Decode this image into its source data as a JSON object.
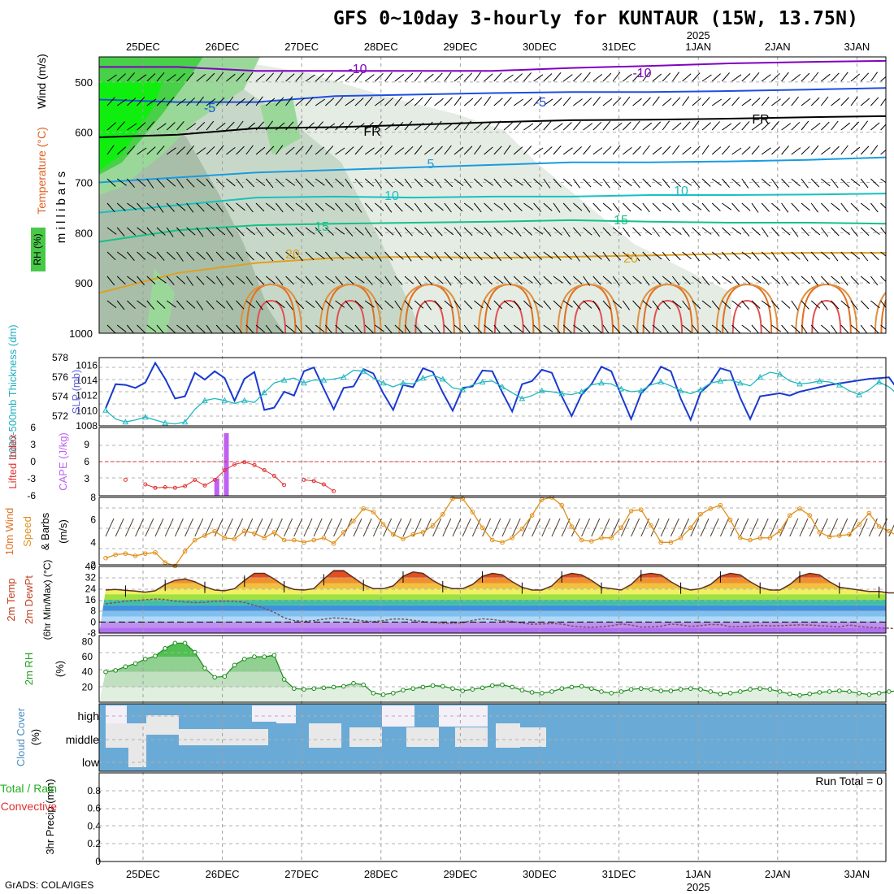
{
  "title": "GFS 0~10day 3-hourly for KUNTAUR (15W, 13.75N)",
  "credit": "GrADS: COLA/IGES",
  "year_label": "2025",
  "dates": [
    "25DEC",
    "26DEC",
    "27DEC",
    "28DEC",
    "29DEC",
    "30DEC",
    "31DEC",
    "1JAN",
    "2JAN",
    "3JAN"
  ],
  "chart_data": [
    {
      "type": "heatmap",
      "panel": "upper-air",
      "ylabel": "Wind (m/s)",
      "ylabel2": "Temperature (°C)",
      "ylabel3": "m i l l i b a r s",
      "rh_label": "RH (%)",
      "y_ticks": [
        500,
        600,
        700,
        800,
        900,
        1000
      ],
      "ylim": [
        1000,
        450
      ],
      "xlim": [
        0,
        10
      ],
      "isotherms": [
        {
          "label": "-10",
          "color": "#8000c0",
          "values": [
            470,
            470,
            478,
            478,
            478,
            478,
            472,
            468,
            463,
            460,
            458
          ]
        },
        {
          "label": "-5",
          "color": "#1f4ee0",
          "values": [
            535,
            540,
            540,
            528,
            525,
            522,
            520,
            520,
            518,
            515,
            512
          ]
        },
        {
          "label": "FR",
          "color": "#000000",
          "values": [
            610,
            605,
            592,
            590,
            585,
            580,
            576,
            575,
            573,
            570,
            568
          ]
        },
        {
          "label": "5",
          "color": "#1a9be0",
          "values": [
            700,
            690,
            680,
            675,
            670,
            665,
            660,
            660,
            658,
            655,
            650
          ]
        },
        {
          "label": "10",
          "color": "#19c0c0",
          "values": [
            760,
            745,
            730,
            728,
            730,
            728,
            728,
            725,
            725,
            724,
            722
          ]
        },
        {
          "label": "15",
          "color": "#16c08a",
          "values": [
            818,
            795,
            785,
            782,
            780,
            778,
            775,
            778,
            780,
            780,
            782
          ]
        },
        {
          "label": "20",
          "color": "#e0a020",
          "values": [
            920,
            880,
            860,
            850,
            848,
            850,
            848,
            845,
            842,
            840,
            840
          ]
        }
      ]
    },
    {
      "type": "line",
      "panel": "slp-thickness",
      "ylabel": "1000-500mb Thickness (dm)",
      "ylabel2": "SLP (mb)",
      "y_ticks_left": [
        572,
        574,
        576,
        578
      ],
      "y_ticks_right": [
        1008,
        1010,
        1012,
        1014,
        1016
      ],
      "ylim_left": [
        571,
        578
      ],
      "ylim_right": [
        1008,
        1017
      ],
      "series": [
        {
          "name": "SLP",
          "color": "#1a3ad0",
          "axis": "right",
          "values": [
            1010.3,
            1013.5,
            1013.4,
            1013.0,
            1013.7,
            1016.3,
            1014.2,
            1011.6,
            1011.9,
            1015.0,
            1014.1,
            1015.2,
            1014.3,
            1011.3,
            1014.2,
            1015.1,
            1010.1,
            1010.4,
            1012.5,
            1012.0,
            1015.2,
            1015.7,
            1012.9,
            1010.2,
            1013.0,
            1013.2,
            1015.5,
            1014.9,
            1012.3,
            1010.1,
            1013.4,
            1013.1,
            1015.6,
            1015.1,
            1012.4,
            1010.0,
            1013.0,
            1013.2,
            1015.3,
            1015.2,
            1012.4,
            1009.9,
            1013.5,
            1013.9,
            1015.4,
            1015.0,
            1011.9,
            1009.3,
            1012.1,
            1013.5,
            1015.8,
            1015.2,
            1012.0,
            1008.9,
            1012.3,
            1013.6,
            1015.8,
            1015.2,
            1011.6,
            1008.8,
            1012.4,
            1013.6,
            1015.6,
            1015.2,
            1011.7,
            1008.9,
            1011.9,
            1012.1,
            1012.3,
            1012.0,
            1012.5,
            1012.8,
            1013.1,
            1013.4,
            1013.6,
            1013.8,
            1014.0,
            1014.2,
            1014.3,
            1014.4,
            1012.6
          ]
        },
        {
          "name": "Thickness",
          "color": "#20b8c0",
          "axis": "left",
          "values": [
            572.6,
            571.7,
            571.4,
            571.6,
            571.9,
            571.6,
            571.3,
            571.2,
            571.4,
            572.7,
            573.6,
            573.8,
            573.6,
            573.3,
            573.6,
            573.4,
            574.4,
            575.4,
            575.7,
            575.9,
            575.4,
            575.7,
            575.7,
            575.8,
            576.0,
            576.7,
            576.6,
            575.9,
            575.4,
            575.0,
            575.4,
            575.3,
            575.9,
            576.2,
            575.8,
            574.9,
            574.7,
            575.2,
            575.5,
            575.6,
            575.0,
            574.4,
            573.8,
            574.1,
            574.6,
            574.5,
            574.3,
            574.2,
            574.5,
            575.2,
            575.4,
            575.3,
            574.8,
            574.5,
            574.6,
            575.2,
            575.5,
            575.1,
            574.6,
            574.3,
            574.7,
            575.4,
            575.6,
            575.7,
            575.4,
            575.1,
            576.0,
            576.5,
            576.3,
            575.6,
            575.3,
            575.4,
            575.6,
            575.5,
            575.2,
            574.6,
            574.2,
            574.7,
            575.5,
            575.0,
            574.1
          ]
        }
      ]
    },
    {
      "type": "bar",
      "panel": "cape-li",
      "ylabel": "Lifted Index",
      "ylabel2": "CAPE (J/kg)",
      "y_ticks_left": [
        "6",
        "3",
        "0",
        "-3",
        "-6"
      ],
      "y_ticks_right": [
        3,
        6,
        9
      ],
      "ylim_li": [
        6,
        -6
      ],
      "ylim_cape": [
        0,
        12
      ],
      "cape_bars": [
        {
          "x": 0.93,
          "value": 3
        },
        {
          "x": 1.05,
          "value": 11
        }
      ],
      "lifted_index": [
        null,
        null,
        3.2,
        null,
        4.0,
        4.6,
        4.5,
        4.6,
        4.3,
        3.2,
        4.2,
        3.2,
        1.5,
        0.5,
        0.1,
        0.6,
        1.5,
        2.5,
        4.1,
        null,
        3.2,
        3.4,
        4.0,
        5.2
      ]
    },
    {
      "type": "line",
      "panel": "wind10m",
      "ylabel": "10m Wind Speed & Barbs (m/s)",
      "y_ticks": [
        2,
        4,
        6,
        8
      ],
      "ylim": [
        2,
        8
      ],
      "series": [
        {
          "name": "Speed",
          "color": "#e0901a",
          "values": [
            2.6,
            2.9,
            3.0,
            2.8,
            3.0,
            3.1,
            2.2,
            1.9,
            3.2,
            4.2,
            4.6,
            5.0,
            4.4,
            4.3,
            5.0,
            4.8,
            4.4,
            4.9,
            4.2,
            4.2,
            4.0,
            4.2,
            4.4,
            3.9,
            4.9,
            5.9,
            7.0,
            6.7,
            5.6,
            4.7,
            4.3,
            4.7,
            4.9,
            5.5,
            6.5,
            7.9,
            7.9,
            6.7,
            5.3,
            4.2,
            4.0,
            4.4,
            5.2,
            6.4,
            7.8,
            8.0,
            7.3,
            5.4,
            4.2,
            4.1,
            4.4,
            4.4,
            5.3,
            6.8,
            6.9,
            5.5,
            4.0,
            4.0,
            4.4,
            5.3,
            6.5,
            7.0,
            7.3,
            6.0,
            4.4,
            4.2,
            4.4,
            4.4,
            5.0,
            6.4,
            7.0,
            6.4,
            4.9,
            4.5,
            4.6,
            4.7,
            5.6,
            6.6,
            5.4,
            5.0,
            4.5
          ]
        }
      ]
    },
    {
      "type": "area",
      "panel": "temperature",
      "ylabel": "2m Temp",
      "ylabel2": "2m DewPt",
      "ylabel3": "(6hr Min/Max) (°C)",
      "y_ticks": [
        -8,
        0,
        8,
        16,
        24,
        32,
        40
      ],
      "ylim": [
        -8,
        40
      ],
      "series": [
        {
          "name": "2m Temp",
          "color": "#603020",
          "values": [
            23,
            23.5,
            22.8,
            22.3,
            21.5,
            22.5,
            27,
            30,
            31,
            29,
            25.5,
            23,
            22.5,
            24,
            30,
            35,
            35,
            31,
            26,
            23.5,
            23,
            24,
            31,
            37,
            37,
            32,
            27,
            24,
            24,
            26,
            33,
            36,
            35,
            30,
            26,
            24,
            24,
            27,
            33,
            35,
            34,
            29,
            25,
            23,
            23,
            26,
            33,
            35,
            34,
            30,
            25,
            24,
            23,
            27,
            34,
            35,
            34,
            29,
            25,
            23,
            24,
            27,
            33,
            35,
            34,
            29,
            25,
            23,
            23,
            27,
            33,
            35,
            34,
            29,
            25,
            24,
            23,
            22,
            22,
            21,
            21
          ]
        },
        {
          "name": "2m DewPt",
          "color": "#a08070",
          "values": [
            13,
            14,
            15,
            15.5,
            16,
            16.5,
            16.2,
            15,
            14.5,
            14,
            14.2,
            15,
            15,
            14.8,
            14.2,
            12,
            10,
            7,
            3,
            1,
            0.5,
            1,
            2,
            3,
            2.6,
            1.8,
            0.8,
            0.3,
            1,
            2.2,
            2.1,
            1.2,
            0.3,
            -0.3,
            -0.8,
            -0.9,
            -0.5,
            1.2,
            2.3,
            1.8,
            0.8,
            0.5,
            -0.8,
            -1.6,
            -1.4,
            -1.1,
            -1.5,
            -2.9,
            -3.5,
            -3.8,
            -3.4,
            -2.7,
            -1.5,
            -2.2,
            -3.6,
            -3.5,
            -3,
            -1.5,
            -2.1,
            -3.2,
            -2.6,
            -1.8,
            -1.9,
            -3.4,
            -3.2,
            -3,
            -2.5,
            -2.8,
            -2.7,
            -2.4,
            -2.1,
            -2.2,
            -2.7,
            -3,
            -3.5,
            -2.2,
            -3.2,
            -3.8,
            -4.2,
            -4.5,
            -4.8
          ]
        }
      ]
    },
    {
      "type": "area",
      "panel": "rh2m",
      "ylabel": "2m RH (%)",
      "y_ticks": [
        20,
        40,
        60,
        80
      ],
      "ylim": [
        0,
        88
      ],
      "series": [
        {
          "name": "2m RH",
          "color": "#1a8a1a",
          "values": [
            40,
            42,
            47,
            51,
            57,
            61,
            71,
            78,
            78,
            66,
            45,
            33,
            34,
            49,
            57,
            60,
            60,
            62,
            30,
            18,
            17,
            18,
            19,
            20,
            21,
            25,
            23,
            12,
            10,
            12,
            16,
            18,
            20,
            22,
            21,
            18,
            15,
            17,
            19,
            22,
            23,
            20,
            16,
            13,
            12,
            14,
            18,
            20,
            21,
            18,
            14,
            12,
            14,
            17,
            18,
            17,
            15,
            15,
            17,
            18,
            17,
            14,
            11,
            12,
            14,
            17,
            18,
            17,
            14,
            11,
            9,
            11,
            13,
            14,
            15,
            14,
            12,
            10,
            12,
            14,
            15
          ]
        }
      ]
    },
    {
      "type": "heatmap",
      "panel": "cloud-cover",
      "ylabel": "Cloud Cover (%)",
      "levels": [
        "high",
        "middle",
        "low"
      ]
    },
    {
      "type": "bar",
      "panel": "precip",
      "ylabel": "3hr Precip (mm)",
      "ylabel2": "Total / Rain",
      "ylabel3": "Convective",
      "y_ticks": [
        0,
        0.2,
        0.4,
        0.6,
        0.8
      ],
      "ylim": [
        0,
        1
      ],
      "run_total": "Run Total = 0",
      "values": []
    }
  ]
}
